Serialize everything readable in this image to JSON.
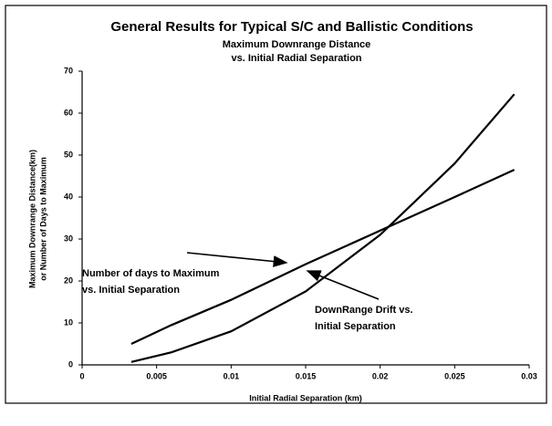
{
  "chart_data": {
    "type": "line",
    "title": "General Results for Typical S/C and Ballistic Conditions",
    "subtitle": [
      "Maximum Downrange Distance",
      "vs. Initial Radial Separation"
    ],
    "x_label": "Initial Radial Separation (km)",
    "y_label": [
      "Maximum Downrange Distance(km)",
      "or Number of Days to Maximum"
    ],
    "x": [
      0.0033,
      0.006,
      0.01,
      0.015,
      0.02,
      0.025,
      0.029
    ],
    "series": [
      {
        "color": "#000000",
        "values": [
          5,
          9.5,
          15.5,
          24,
          32,
          40,
          46.5
        ]
      },
      {
        "color": "#000000",
        "values": [
          0.7,
          3,
          8,
          17.5,
          31,
          48,
          64.5
        ]
      }
    ],
    "annotations": [
      [
        "Number of days to Maximum",
        "vs. Initial Separation"
      ],
      [
        "DownRange Drift vs.",
        "Initial Separation"
      ]
    ],
    "xlim": [
      0,
      0.03
    ],
    "xticks": [
      0,
      0.005,
      0.01,
      0.015,
      0.02,
      0.025,
      0.03
    ],
    "ylim": [
      0,
      70
    ],
    "yticks": [
      0,
      10,
      20,
      30,
      40,
      50,
      60,
      70
    ],
    "grid": false
  }
}
